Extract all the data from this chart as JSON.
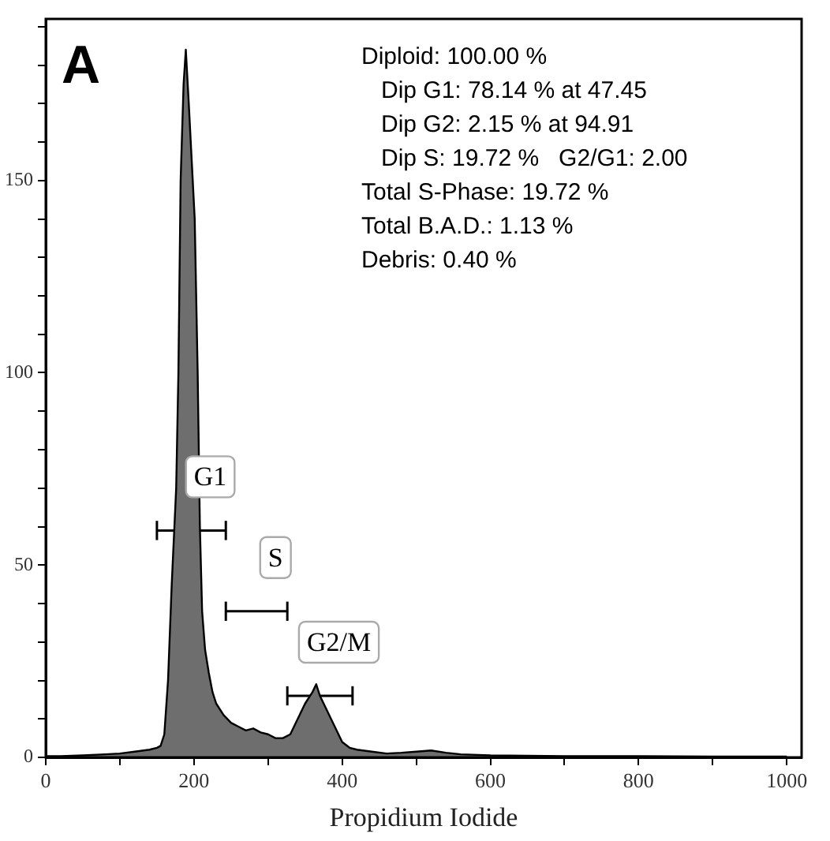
{
  "chart_data": {
    "type": "area",
    "title": "A",
    "xlabel": "Propidium Iodide",
    "xlim": [
      0,
      1020
    ],
    "ylim": [
      0,
      192
    ],
    "xticks": [
      0,
      {
        "value": 100,
        "label": null
      },
      200,
      {
        "value": 300,
        "label": null
      },
      400,
      {
        "value": 500,
        "label": null
      },
      600,
      {
        "value": 700,
        "label": null
      },
      800,
      {
        "value": 900,
        "label": null
      },
      1000
    ],
    "yticks": [
      0,
      {
        "value": 10,
        "label": null
      },
      {
        "value": 20,
        "label": null
      },
      {
        "value": 30,
        "label": null
      },
      {
        "value": 40,
        "label": null
      },
      50,
      {
        "value": 60,
        "label": null
      },
      {
        "value": 70,
        "label": null
      },
      {
        "value": 80,
        "label": null
      },
      {
        "value": 90,
        "label": null
      },
      100,
      {
        "value": 110,
        "label": null
      },
      {
        "value": 120,
        "label": null
      },
      {
        "value": 130,
        "label": null
      },
      {
        "value": 140,
        "label": null
      },
      150,
      {
        "value": 160,
        "label": null
      },
      {
        "value": 170,
        "label": null
      },
      {
        "value": 180,
        "label": null
      },
      {
        "value": 190,
        "label": null
      }
    ],
    "grid": false,
    "legend": false,
    "series": [
      {
        "color": "#6e6e6e",
        "x": [
          0,
          20,
          50,
          80,
          100,
          120,
          140,
          150,
          155,
          160,
          165,
          170,
          176,
          179,
          182,
          186,
          189,
          193,
          197,
          201,
          205,
          208,
          211,
          215,
          220,
          225,
          230,
          240,
          250,
          260,
          270,
          280,
          290,
          300,
          310,
          320,
          330,
          340,
          350,
          360,
          365,
          370,
          380,
          390,
          400,
          410,
          420,
          440,
          460,
          480,
          500,
          520,
          540,
          560,
          600,
          650,
          700,
          800,
          900,
          1000
        ],
        "values": [
          0.3,
          0.3,
          0.5,
          0.8,
          1,
          1.5,
          2,
          2.5,
          3,
          6,
          20,
          45,
          70,
          100,
          150,
          175,
          184,
          170,
          155,
          140,
          100,
          60,
          38,
          28,
          22,
          17,
          14,
          11,
          9,
          8,
          7,
          7.5,
          6.5,
          6,
          5,
          5,
          6,
          10,
          14,
          17,
          19,
          16,
          12,
          8,
          4,
          2.5,
          2,
          1.5,
          1,
          1.2,
          1.5,
          1.8,
          1.2,
          0.8,
          0.5,
          0.4,
          0.3,
          0.3,
          0.2,
          0.2
        ]
      },
      {
        "type": "line",
        "color": "#000000",
        "x": [
          150,
          243
        ],
        "values": [
          59,
          59
        ],
        "errors": [
          2.5,
          2.5
        ]
      },
      {
        "type": "line",
        "color": "#000000",
        "x": [
          243,
          326
        ],
        "values": [
          38,
          38
        ],
        "errors": [
          2.5,
          2.5
        ]
      },
      {
        "type": "line",
        "color": "#000000",
        "x": [
          326,
          414
        ],
        "values": [
          16,
          16
        ],
        "errors": [
          2.5,
          2.5
        ]
      }
    ],
    "annotations": [
      "Diploid: 100.00 %",
      "   Dip G1: 78.14 % at 47.45",
      "   Dip G2: 2.15 % at 94.91",
      "   Dip S: 19.72 %   G2/G1: 2.00",
      "Total S-Phase: 19.72 %",
      "Total B.A.D.: 1.13 %",
      "Debris: 0.40 %",
      {
        "text": "G1",
        "x": 196.5,
        "y": 59
      },
      {
        "text": "S",
        "x": 284.5,
        "y": 38
      },
      {
        "text": "G2/M",
        "x": 370,
        "y": 16
      }
    ]
  }
}
